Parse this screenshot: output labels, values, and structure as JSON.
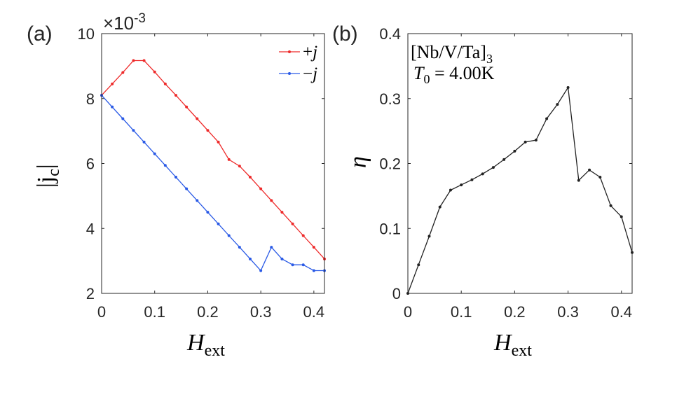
{
  "chart_data": [
    {
      "panel_label": "(a)",
      "type": "line",
      "exponent_label": "×10",
      "exponent_power": "-3",
      "xlabel": "H",
      "xlabel_sub": "ext",
      "ylabel": "|j",
      "ylabel_sub": "c",
      "ylabel_end": "|",
      "xlim": [
        0,
        0.42
      ],
      "ylim": [
        2,
        10
      ],
      "xticks": [
        0,
        0.1,
        0.2,
        0.3,
        0.4
      ],
      "xtick_labels": [
        "0",
        "0.1",
        "0.2",
        "0.3",
        "0.4"
      ],
      "yticks": [
        2,
        4,
        6,
        8,
        10
      ],
      "ytick_labels": [
        "2",
        "4",
        "6",
        "8",
        "10"
      ],
      "x": [
        0,
        0.02,
        0.04,
        0.06,
        0.08,
        0.1,
        0.12,
        0.14,
        0.16,
        0.18,
        0.2,
        0.22,
        0.24,
        0.26,
        0.28,
        0.3,
        0.32,
        0.34,
        0.36,
        0.38,
        0.4,
        0.42
      ],
      "legend_position": "top-right",
      "series": [
        {
          "name": "+j",
          "legend_sign": "+",
          "legend_var": "j",
          "color": "#ee2a2a",
          "values": [
            8.1,
            8.45,
            8.8,
            9.17,
            9.17,
            8.82,
            8.45,
            8.1,
            7.74,
            7.38,
            7.02,
            6.66,
            6.12,
            5.92,
            5.58,
            5.22,
            4.86,
            4.5,
            4.14,
            3.78,
            3.42,
            3.06
          ]
        },
        {
          "name": "-j",
          "legend_sign": "−",
          "legend_var": "j",
          "color": "#2a5ae6",
          "values": [
            8.1,
            7.74,
            7.38,
            7.02,
            6.66,
            6.3,
            5.94,
            5.58,
            5.22,
            4.86,
            4.5,
            4.14,
            3.78,
            3.42,
            3.06,
            2.7,
            3.42,
            3.06,
            2.88,
            2.88,
            2.7,
            2.7
          ]
        }
      ]
    },
    {
      "panel_label": "(b)",
      "type": "line",
      "xlabel": "H",
      "xlabel_sub": "ext",
      "ylabel": "η",
      "xlim": [
        0,
        0.42
      ],
      "ylim": [
        0,
        0.4
      ],
      "xticks": [
        0,
        0.1,
        0.2,
        0.3,
        0.4
      ],
      "xtick_labels": [
        "0",
        "0.1",
        "0.2",
        "0.3",
        "0.4"
      ],
      "yticks": [
        0,
        0.1,
        0.2,
        0.3,
        0.4
      ],
      "ytick_labels": [
        "0",
        "0.1",
        "0.2",
        "0.3",
        "0.4"
      ],
      "annotation_line1": "[Nb/V/Ta]",
      "annotation_line1_sub": "3",
      "annotation_line2_var": "T",
      "annotation_line2_sub": "0",
      "annotation_line2_rest": " = 4.00K",
      "x": [
        0,
        0.02,
        0.04,
        0.06,
        0.08,
        0.1,
        0.12,
        0.14,
        0.16,
        0.18,
        0.2,
        0.22,
        0.24,
        0.26,
        0.28,
        0.3,
        0.32,
        0.34,
        0.36,
        0.38,
        0.4,
        0.42
      ],
      "series": [
        {
          "name": "eta",
          "color": "#222222",
          "values": [
            0.0,
            0.044,
            0.088,
            0.133,
            0.159,
            0.167,
            0.175,
            0.184,
            0.194,
            0.206,
            0.219,
            0.233,
            0.236,
            0.269,
            0.291,
            0.317,
            0.174,
            0.19,
            0.179,
            0.135,
            0.118,
            0.063
          ]
        }
      ]
    }
  ]
}
